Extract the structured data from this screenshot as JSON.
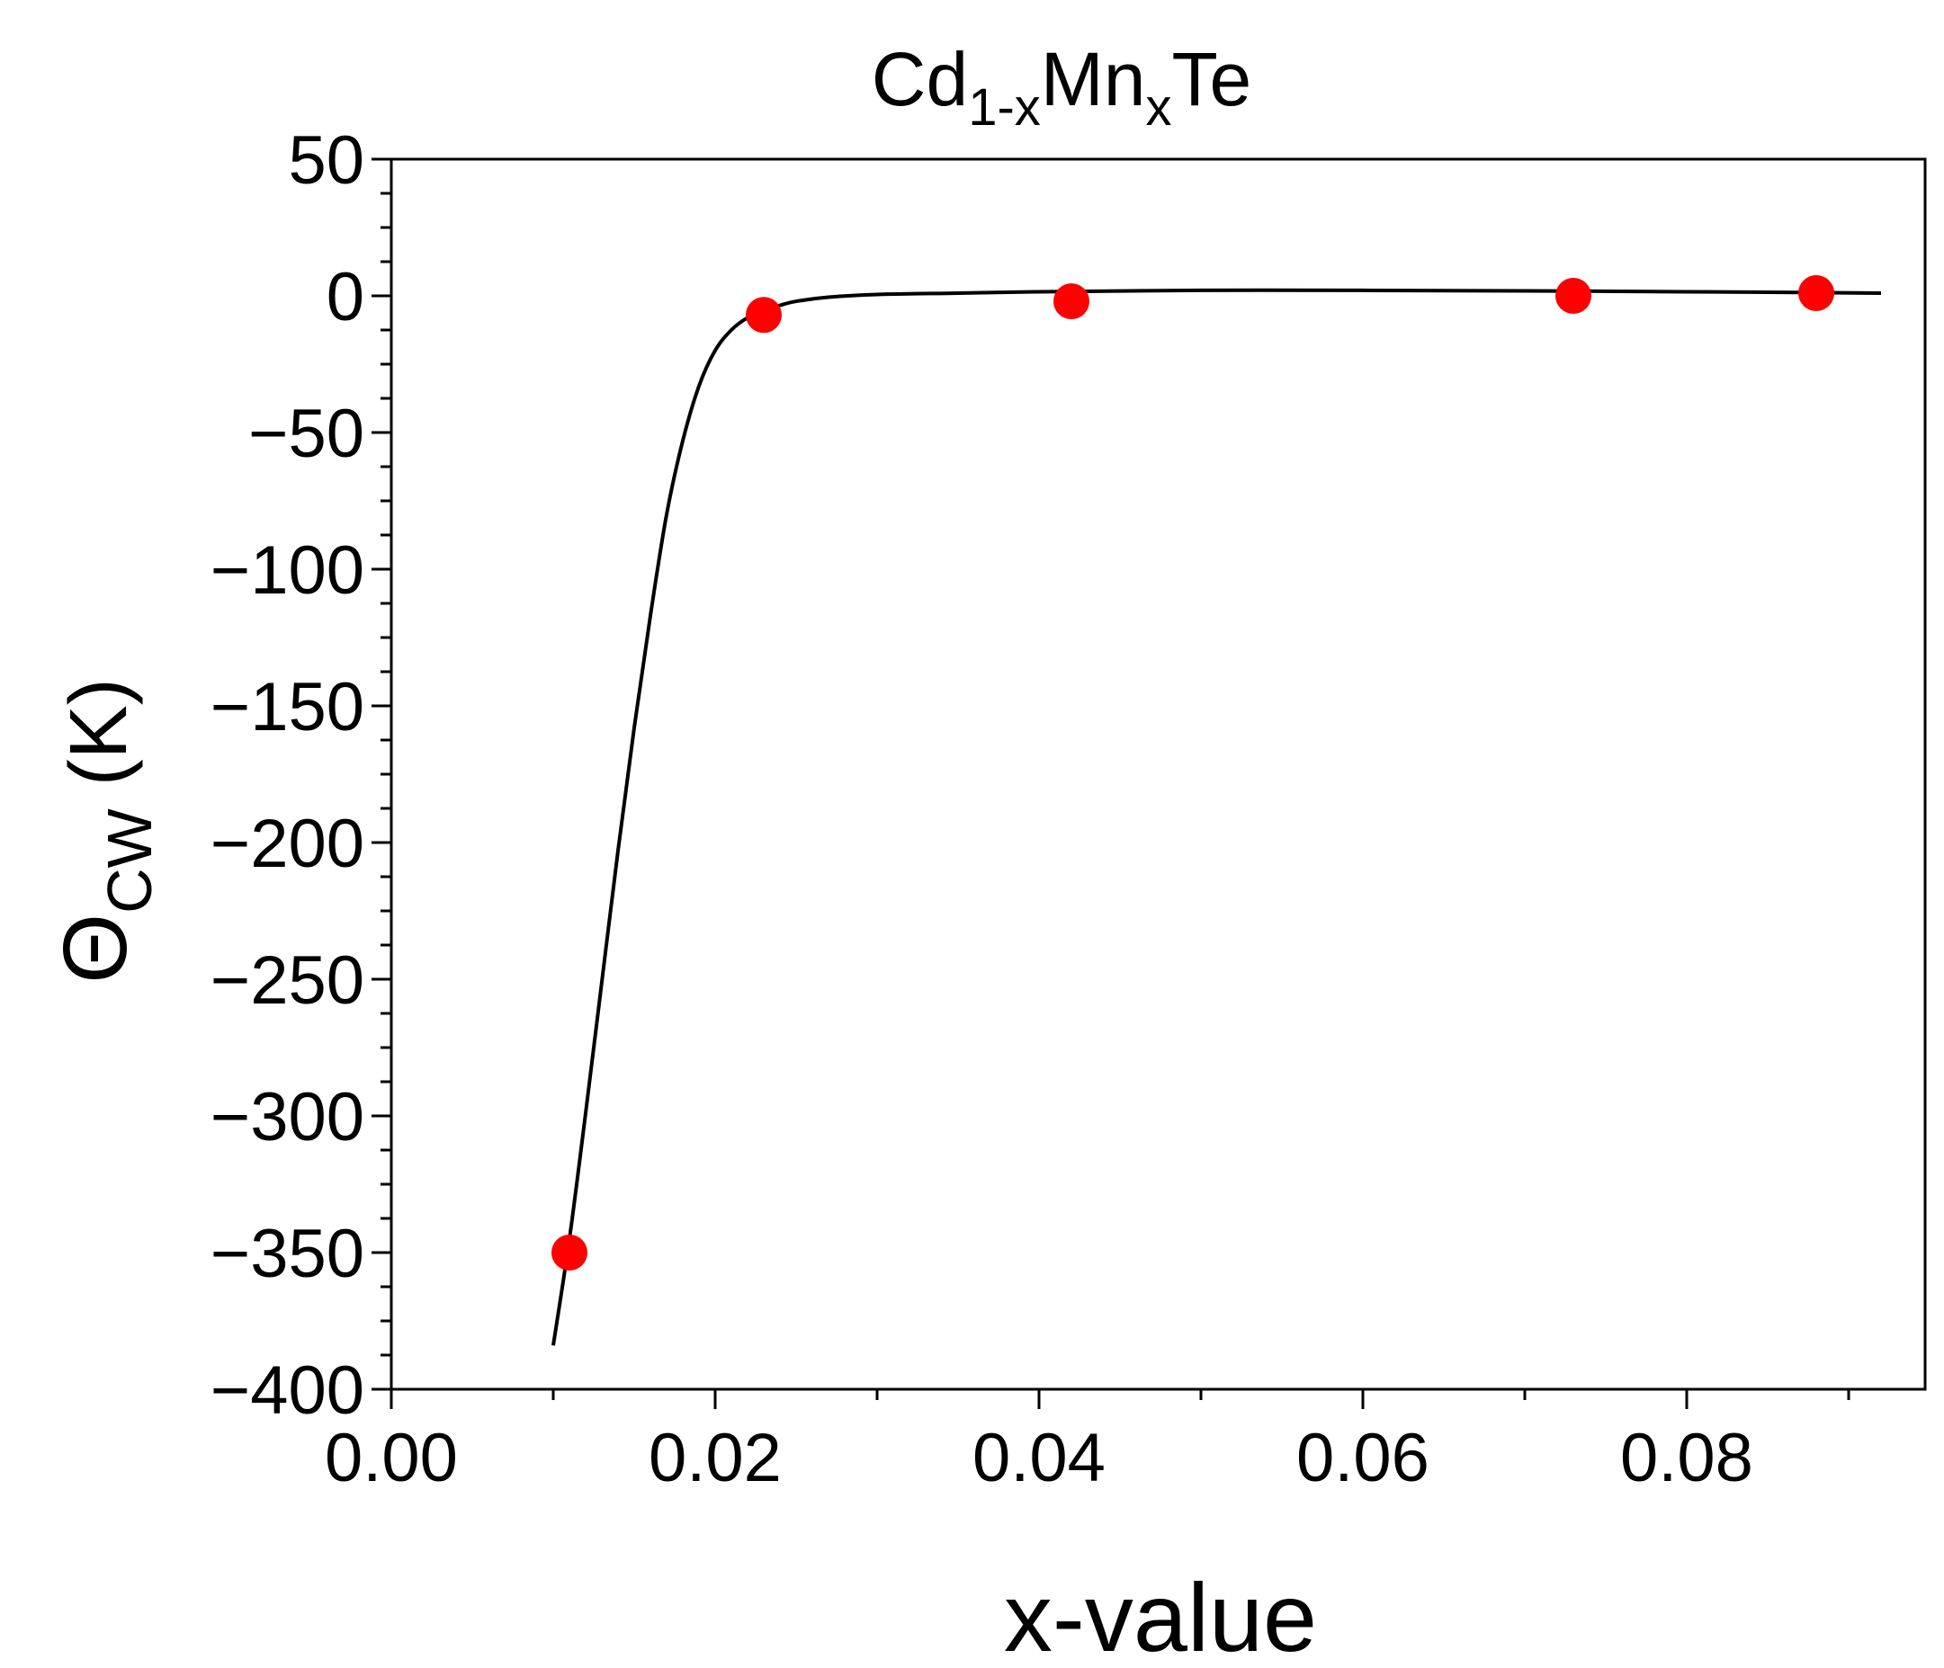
{
  "chart_data": {
    "type": "scatter",
    "title": {
      "parts": [
        {
          "text": "Cd",
          "sub": false
        },
        {
          "text": "1-x",
          "sub": true
        },
        {
          "text": "Mn",
          "sub": false
        },
        {
          "text": "x",
          "sub": true
        },
        {
          "text": "Te",
          "sub": false
        }
      ]
    },
    "xlabel": "x-value",
    "ylabel": {
      "main": "Θ",
      "sub": "CW",
      "unit": " (K)"
    },
    "xlim": [
      0.0,
      0.095
    ],
    "ylim": [
      -400,
      50
    ],
    "xticks": [
      0.0,
      0.02,
      0.04,
      0.06,
      0.08
    ],
    "xtick_labels": [
      "0.00",
      "0.02",
      "0.04",
      "0.06",
      "0.08"
    ],
    "yticks": [
      50,
      0,
      -50,
      -100,
      -150,
      -200,
      -250,
      -300,
      -350,
      -400
    ],
    "ytick_labels": [
      "50",
      "0",
      "−50",
      "−100",
      "−150",
      "−200",
      "−250",
      "−300",
      "−350",
      "−400"
    ],
    "grid": false,
    "series": [
      {
        "kind": "points",
        "color": "#ff0000",
        "x": [
          0.011,
          0.023,
          0.042,
          0.073,
          0.088
        ],
        "y": [
          -350,
          -7,
          -2,
          0,
          1
        ]
      },
      {
        "kind": "line",
        "color": "#000000",
        "x": [
          0.01,
          0.011,
          0.012,
          0.013,
          0.014,
          0.015,
          0.016,
          0.017,
          0.018,
          0.019,
          0.02,
          0.021,
          0.022,
          0.023,
          0.024,
          0.025,
          0.027,
          0.03,
          0.035,
          0.04,
          0.05,
          0.06,
          0.07,
          0.08,
          0.092
        ],
        "y": [
          -384,
          -345,
          -299,
          -251,
          -203,
          -158,
          -117,
          -80,
          -53,
          -33,
          -20,
          -12.5,
          -8,
          -5.5,
          -3.5,
          -2,
          -0.5,
          0.5,
          1,
          1.5,
          2,
          2,
          1.8,
          1.5,
          1
        ]
      }
    ]
  }
}
